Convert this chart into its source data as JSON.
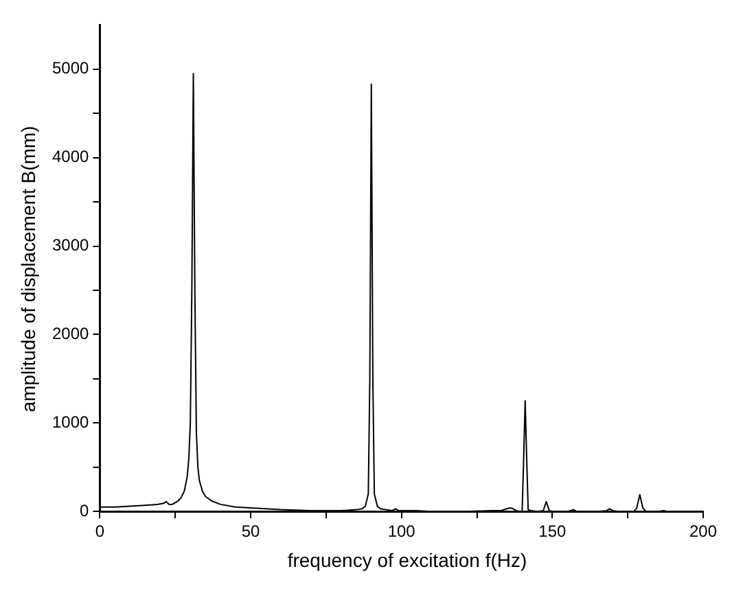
{
  "chart_data": {
    "type": "line",
    "xlabel": "frequency of excitation f(Hz)",
    "ylabel": "amplitude of displacement B(mm)",
    "xlim": [
      0,
      200
    ],
    "ylim": [
      0,
      5500
    ],
    "xticks": [
      0,
      {
        "value": 25,
        "label": null
      },
      50,
      {
        "value": 75,
        "label": null
      },
      100,
      {
        "value": 125,
        "label": null
      },
      150,
      {
        "value": 175,
        "label": null
      },
      200
    ],
    "yticks": [
      0,
      {
        "value": 500,
        "label": null
      },
      1000,
      {
        "value": 1500,
        "label": null
      },
      2000,
      {
        "value": 2500,
        "label": null
      },
      3000,
      {
        "value": 3500,
        "label": null
      },
      4000,
      {
        "value": 4500,
        "label": null
      },
      5000
    ],
    "series": [
      {
        "color": "#000000",
        "x": [
          0,
          5,
          10,
          15,
          19,
          21,
          22,
          23,
          24,
          25,
          26,
          27,
          28,
          29,
          29.5,
          30,
          30.5,
          31,
          31.5,
          32,
          32.5,
          33,
          34,
          35,
          37,
          40,
          45,
          50,
          55,
          60,
          70,
          80,
          85,
          87,
          88,
          89,
          89.5,
          90,
          90.5,
          91,
          92,
          93,
          95,
          97,
          98,
          99,
          100,
          105,
          110,
          120,
          130,
          133,
          135,
          136,
          137,
          138,
          139,
          140,
          140.5,
          141,
          141.5,
          142,
          143,
          145,
          147,
          148,
          149,
          150,
          155,
          157,
          158,
          160,
          165,
          168,
          169,
          170,
          172,
          175,
          177,
          178,
          179,
          180,
          181,
          183,
          185,
          187,
          188,
          190,
          195,
          200
        ],
        "values": [
          50,
          50,
          60,
          70,
          80,
          90,
          110,
          80,
          80,
          100,
          120,
          160,
          230,
          400,
          600,
          1000,
          2500,
          4950,
          2500,
          900,
          500,
          350,
          230,
          170,
          120,
          80,
          50,
          40,
          30,
          20,
          10,
          10,
          20,
          30,
          60,
          200,
          1500,
          4830,
          1500,
          200,
          60,
          30,
          20,
          10,
          30,
          10,
          10,
          10,
          0,
          0,
          10,
          10,
          30,
          40,
          30,
          10,
          0,
          0,
          600,
          1250,
          600,
          20,
          10,
          0,
          10,
          110,
          10,
          0,
          0,
          20,
          0,
          0,
          0,
          10,
          30,
          10,
          0,
          0,
          0,
          40,
          190,
          40,
          0,
          0,
          0,
          10,
          0,
          0,
          0,
          0
        ]
      }
    ]
  }
}
